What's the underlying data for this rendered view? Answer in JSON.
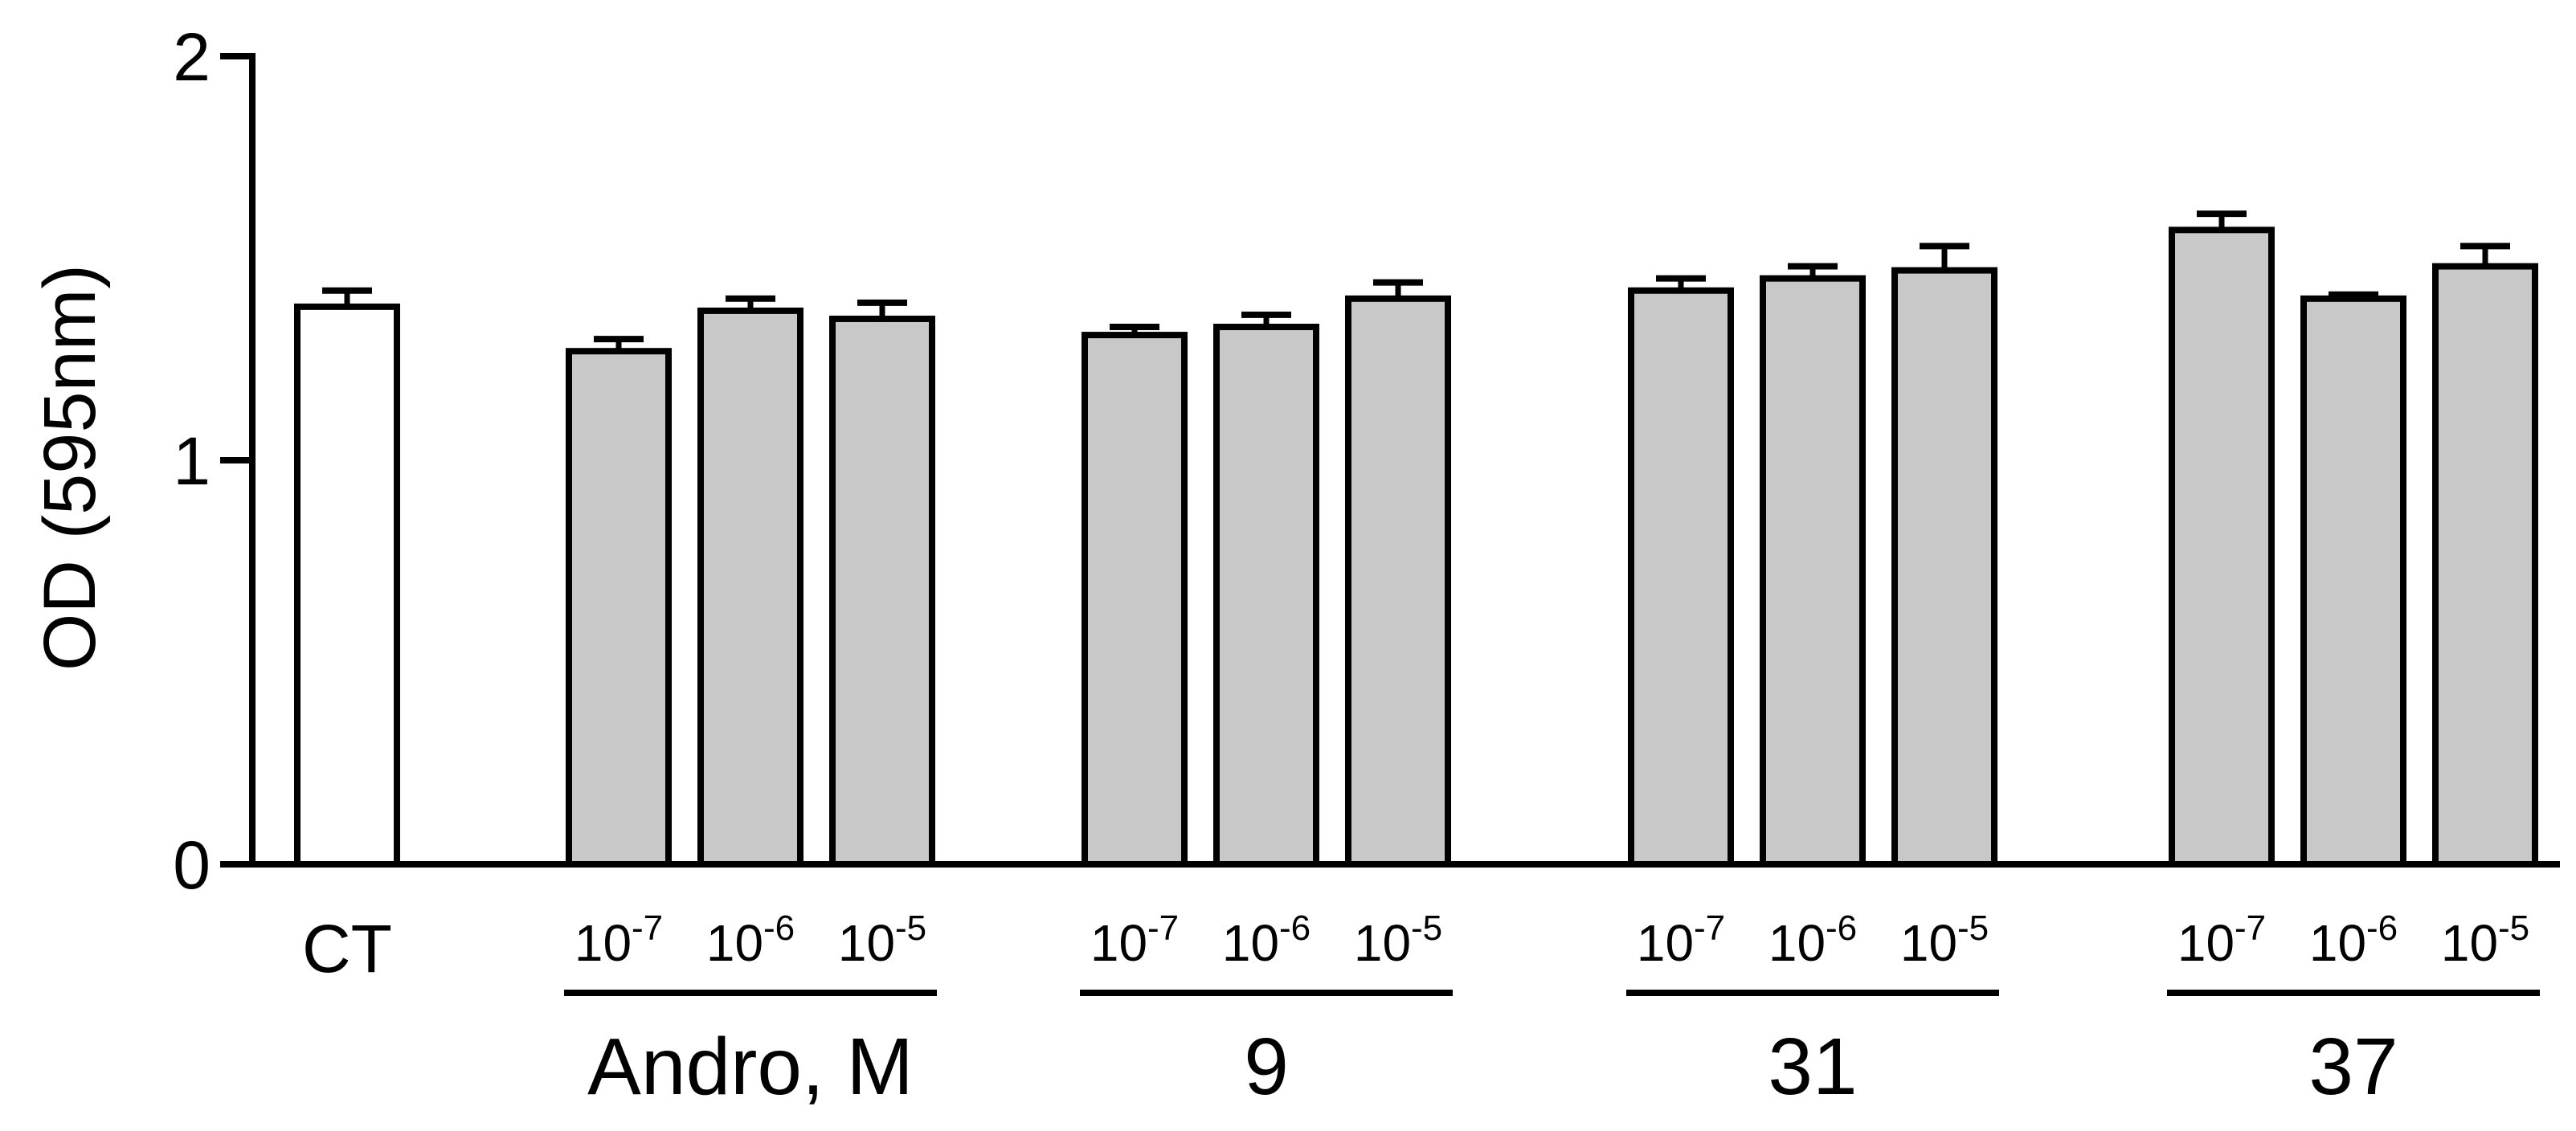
{
  "chart_data": {
    "type": "bar",
    "title": "",
    "xlabel": "",
    "ylabel": "OD (595nm)",
    "ylim": [
      0,
      2
    ],
    "yticks": [
      "0",
      "1",
      "2"
    ],
    "grid": false,
    "legend": "none",
    "control": {
      "label": "CT",
      "value": 1.38,
      "error": 0.04,
      "fill": "#ffffff"
    },
    "groups": [
      {
        "label": "Andro, M",
        "fill": "#c8c8c8",
        "bars": [
          {
            "base": "10",
            "exp": "-7",
            "value": 1.27,
            "error": 0.03
          },
          {
            "base": "10",
            "exp": "-6",
            "value": 1.37,
            "error": 0.03
          },
          {
            "base": "10",
            "exp": "-5",
            "value": 1.35,
            "error": 0.04
          }
        ]
      },
      {
        "label": "9",
        "fill": "#c8c8c8",
        "bars": [
          {
            "base": "10",
            "exp": "-7",
            "value": 1.31,
            "error": 0.02
          },
          {
            "base": "10",
            "exp": "-6",
            "value": 1.33,
            "error": 0.03
          },
          {
            "base": "10",
            "exp": "-5",
            "value": 1.4,
            "error": 0.04
          }
        ]
      },
      {
        "label": "31",
        "fill": "#c8c8c8",
        "bars": [
          {
            "base": "10",
            "exp": "-7",
            "value": 1.42,
            "error": 0.03
          },
          {
            "base": "10",
            "exp": "-6",
            "value": 1.45,
            "error": 0.03
          },
          {
            "base": "10",
            "exp": "-5",
            "value": 1.47,
            "error": 0.06
          }
        ]
      },
      {
        "label": "37",
        "fill": "#c8c8c8",
        "bars": [
          {
            "base": "10",
            "exp": "-7",
            "value": 1.57,
            "error": 0.04
          },
          {
            "base": "10",
            "exp": "-6",
            "value": 1.4,
            "error": 0.01
          },
          {
            "base": "10",
            "exp": "-5",
            "value": 1.48,
            "error": 0.05
          }
        ]
      }
    ]
  }
}
